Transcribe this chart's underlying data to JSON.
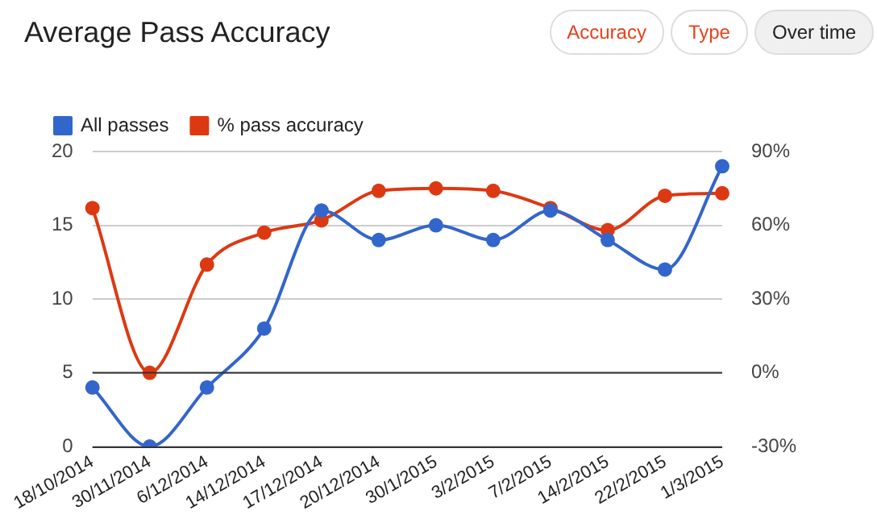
{
  "chart_data": {
    "type": "line",
    "title": "Average Pass Accuracy",
    "annotations": [
      "Accuracy",
      "Type",
      "Over time"
    ],
    "categories": [
      "18/10/2014",
      "30/11/2014",
      "6/12/2014",
      "14/12/2014",
      "17/12/2014",
      "20/12/2014",
      "30/1/2015",
      "3/2/2015",
      "7/2/2015",
      "14/2/2015",
      "22/2/2015",
      "1/3/2015"
    ],
    "series": [
      {
        "name": "All passes",
        "color": "#3366cc",
        "values": [
          4,
          0,
          4,
          8,
          16,
          14,
          15,
          14,
          16,
          14,
          12,
          19
        ]
      },
      {
        "name": "% pass accuracy",
        "color": "#dc3912",
        "axis": "y2",
        "values": [
          67,
          0,
          44,
          57,
          62,
          74,
          75,
          74,
          67,
          58,
          72,
          73
        ]
      }
    ],
    "ylim": [
      0,
      20
    ],
    "yticks": [
      0,
      5,
      10,
      15,
      20
    ],
    "y2lim": [
      -30,
      90
    ],
    "y2ticks": [
      {
        "value": -30,
        "label": "-30%"
      },
      {
        "value": 0,
        "label": "0%"
      },
      {
        "value": 30,
        "label": "30%"
      },
      {
        "value": 60,
        "label": "60%"
      },
      {
        "value": 90,
        "label": "90%"
      }
    ],
    "ref_lines": [
      {
        "axis": "y2",
        "value": 0,
        "color": "#333333"
      }
    ],
    "grid": "y",
    "legend": "top left",
    "marker": "circle",
    "line_style": "solid"
  }
}
